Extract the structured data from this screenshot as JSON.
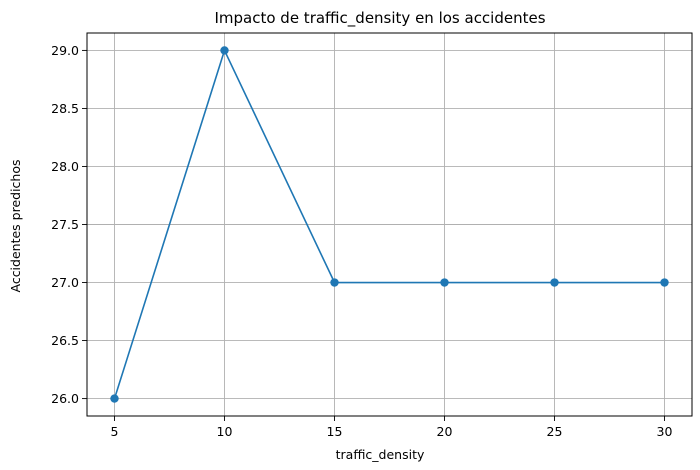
{
  "chart_data": {
    "type": "line",
    "title": "Impacto de traffic_density en los accidentes",
    "xlabel": "traffic_density",
    "ylabel": "Accidentes predichos",
    "x": [
      5,
      10,
      15,
      20,
      25,
      30
    ],
    "series": [
      {
        "values": [
          26.0,
          29.0,
          27.0,
          27.0,
          27.0,
          27.0
        ]
      }
    ],
    "xlim": [
      3.75,
      31.25
    ],
    "ylim": [
      25.85,
      29.15
    ],
    "xticks": [
      5,
      10,
      15,
      20,
      25,
      30
    ],
    "xtick_labels": [
      "5",
      "10",
      "15",
      "20",
      "25",
      "30"
    ],
    "yticks": [
      26.0,
      26.5,
      27.0,
      27.5,
      28.0,
      28.5,
      29.0
    ],
    "ytick_labels": [
      "26.0",
      "26.5",
      "27.0",
      "27.5",
      "28.0",
      "28.5",
      "29.0"
    ],
    "grid": true,
    "marker": "circle",
    "line_color": "#1f77b4"
  }
}
